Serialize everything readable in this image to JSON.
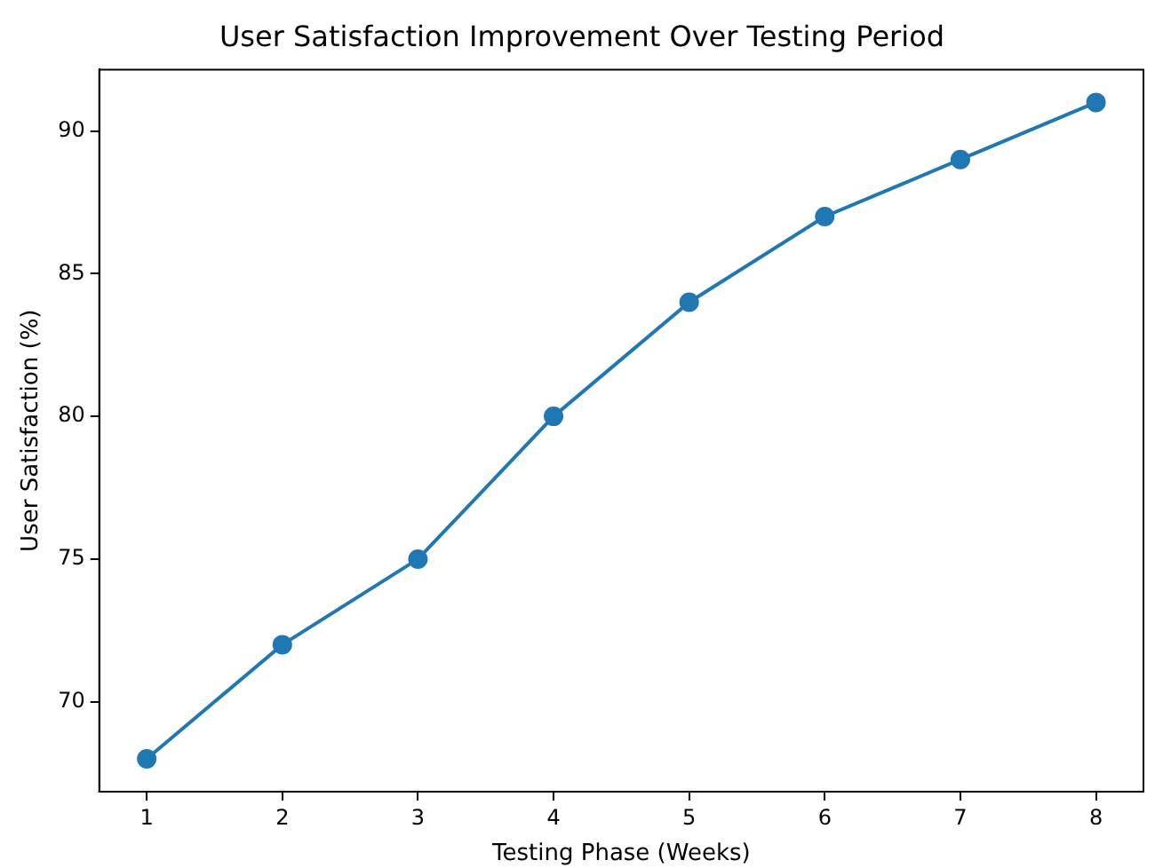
{
  "chart_data": {
    "type": "line",
    "title": "User Satisfaction Improvement Over Testing Period",
    "xlabel": "Testing Phase (Weeks)",
    "ylabel": "User Satisfaction (%)",
    "x": [
      1,
      2,
      3,
      4,
      5,
      6,
      7,
      8
    ],
    "series": [
      {
        "color": "#1f77b4",
        "values": [
          68,
          72,
          75,
          80,
          84,
          87,
          89,
          91
        ]
      }
    ],
    "xlim": [
      0.65,
      8.35
    ],
    "xticks": [
      1,
      2,
      3,
      4,
      5,
      6,
      7,
      8
    ],
    "ylim": [
      66.85,
      92.15
    ],
    "yticks": [
      70,
      75,
      80,
      85,
      90
    ],
    "grid": false,
    "legend": false,
    "marker": "circle",
    "line_style": "solid"
  }
}
